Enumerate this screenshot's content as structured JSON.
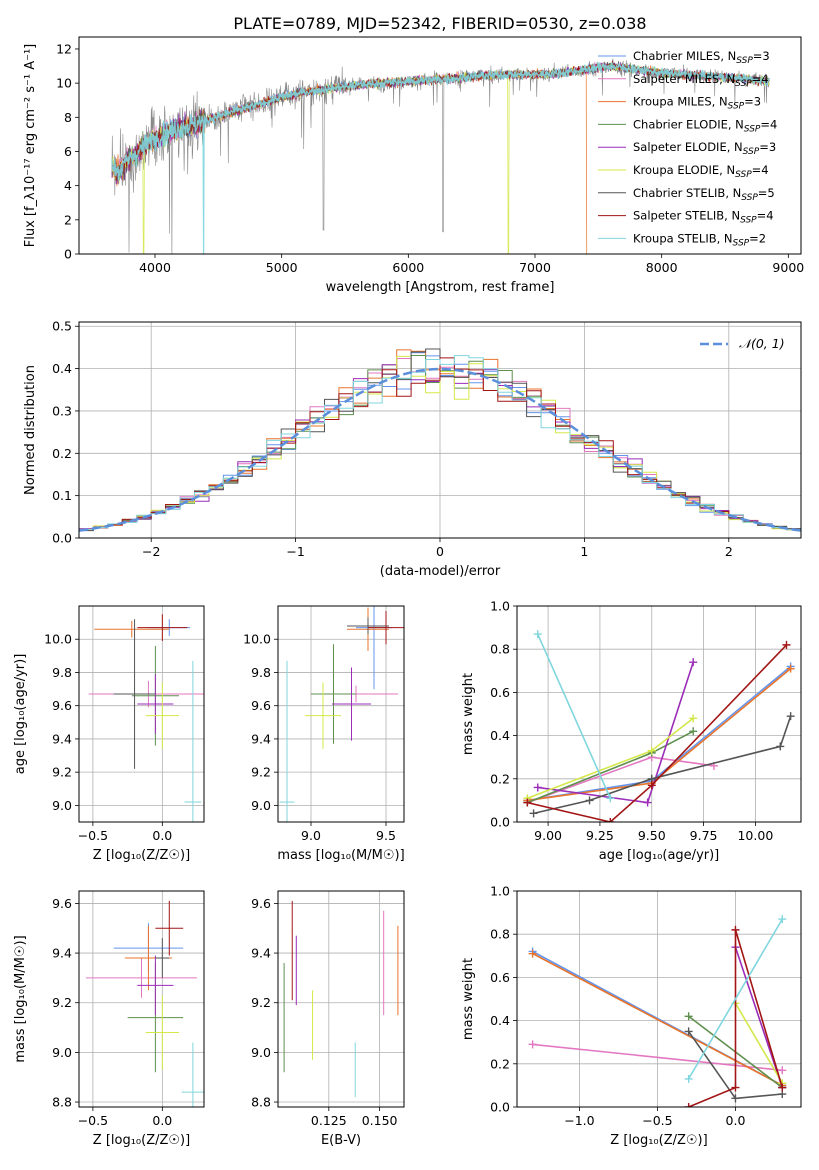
{
  "figure": {
    "title": "PLATE=0789, MJD=52342, FIBERID=0530, z=0.038"
  },
  "colors": {
    "chabrier_miles": "#6495ED",
    "salpeter_miles": "#E377C2",
    "kroupa_miles": "#E8742C",
    "chabrier_elodie": "#5E8F4E",
    "salpeter_elodie": "#9B2DB8",
    "kroupa_elodie": "#D4E84A",
    "chabrier_stelib": "#555555",
    "salpeter_stelib": "#A31515",
    "kroupa_stelib": "#80D6DE",
    "data_gray": "#888888",
    "normal_curve": "#5B8FDB"
  },
  "chart_data": [
    {
      "id": "spectrum",
      "type": "line",
      "xlabel": "wavelength [Angstrom, rest frame]",
      "ylabel": "Flux [f_λ10⁻¹⁷ erg cm⁻² s⁻¹ A⁻¹]",
      "xlim": [
        3400,
        9100
      ],
      "ylim": [
        0,
        12.7
      ],
      "xticks": [
        4000,
        5000,
        6000,
        7000,
        8000,
        9000
      ],
      "yticks": [
        0,
        2,
        4,
        6,
        8,
        10,
        12
      ],
      "grid": false,
      "legend_position": "right",
      "legend": [
        {
          "main": "Chabrier MILES, N",
          "sub": "SSP",
          "suffix": "=3",
          "color": "#6495ED"
        },
        {
          "main": "Salpeter MILES, N",
          "sub": "SSP",
          "suffix": "=4",
          "color": "#E377C2"
        },
        {
          "main": "Kroupa MILES, N",
          "sub": "SSP",
          "suffix": "=3",
          "color": "#E8742C"
        },
        {
          "main": "Chabrier ELODIE, N",
          "sub": "SSP",
          "suffix": "=4",
          "color": "#5E8F4E"
        },
        {
          "main": "Salpeter ELODIE, N",
          "sub": "SSP",
          "suffix": "=3",
          "color": "#9B2DB8"
        },
        {
          "main": "Kroupa ELODIE, N",
          "sub": "SSP",
          "suffix": "=4",
          "color": "#D4E84A"
        },
        {
          "main": "Chabrier STELIB, N",
          "sub": "SSP",
          "suffix": "=5",
          "color": "#555555"
        },
        {
          "main": "Salpeter STELIB, N",
          "sub": "SSP",
          "suffix": "=4",
          "color": "#A31515"
        },
        {
          "main": "Kroupa STELIB, N",
          "sub": "SSP",
          "suffix": "=2",
          "color": "#80D6DE"
        }
      ],
      "continuum": {
        "x": [
          3650,
          3700,
          3800,
          3900,
          4000,
          4200,
          4400,
          4600,
          4800,
          5000,
          5200,
          5400,
          5600,
          5800,
          6000,
          6200,
          6400,
          6600,
          6800,
          7000,
          7200,
          7400,
          7600,
          7800,
          8000,
          8200,
          8400,
          8600,
          8850
        ],
        "y": [
          5.3,
          4.7,
          5.6,
          6.2,
          6.8,
          7.4,
          7.8,
          8.3,
          8.7,
          9.2,
          9.5,
          9.7,
          9.9,
          10.0,
          10.1,
          10.2,
          10.3,
          10.45,
          10.5,
          10.5,
          10.6,
          10.8,
          11.0,
          10.8,
          10.6,
          10.5,
          10.4,
          10.3,
          10.1
        ]
      },
      "gaps": [
        {
          "x": 3910,
          "model": "Kroupa ELODIE",
          "bottom": 0
        },
        {
          "x": 4385,
          "model": "Kroupa STELIB",
          "bottom": 0
        },
        {
          "x": 6790,
          "model": "Kroupa ELODIE",
          "bottom": 0
        },
        {
          "x": 7410,
          "model": "Kroupa MILES",
          "bottom": 0
        }
      ]
    },
    {
      "id": "residuals",
      "type": "line",
      "xlabel": "(data-model)/error",
      "ylabel": "Normed distribution",
      "xlim": [
        -2.5,
        2.5
      ],
      "ylim": [
        0,
        0.51
      ],
      "xticks": [
        -2,
        -1,
        0,
        1,
        2
      ],
      "yticks": [
        0.0,
        0.1,
        0.2,
        0.3,
        0.4,
        0.5
      ],
      "grid": true,
      "legend_position": "top-right",
      "legend_label": "𝒩(0, 1)",
      "bin_width": 0.1,
      "series": [
        "Chabrier MILES",
        "Salpeter MILES",
        "Kroupa MILES",
        "Chabrier ELODIE",
        "Salpeter ELODIE",
        "Kroupa ELODIE",
        "Chabrier STELIB",
        "Salpeter STELIB",
        "Kroupa STELIB"
      ]
    },
    {
      "id": "age_vs_Z",
      "type": "scatter",
      "xlabel": "Z [log₁₀(Z/Z☉)]",
      "ylabel": "age  [log₁₀(age/yr)]",
      "xlim": [
        -0.6,
        0.3
      ],
      "ylim": [
        8.9,
        10.2
      ],
      "xticks": [
        -0.5,
        0.0
      ],
      "yticks": [
        9.0,
        9.2,
        9.4,
        9.6,
        9.8,
        10.0
      ],
      "grid": true,
      "points": [
        {
          "model": "Chabrier MILES",
          "x": 0.05,
          "y": 10.07,
          "xerr": 0.15,
          "yerr": 0.05
        },
        {
          "model": "Salpeter MILES",
          "x": -0.1,
          "y": 9.67,
          "xerr": 0.43,
          "yerr": 0.08
        },
        {
          "model": "Kroupa MILES",
          "x": -0.22,
          "y": 10.06,
          "xerr": 0.27,
          "yerr": 0.05
        },
        {
          "model": "Chabrier ELODIE",
          "x": -0.05,
          "y": 9.66,
          "xerr": 0.17,
          "yerr": 0.3
        },
        {
          "model": "Salpeter ELODIE",
          "x": -0.05,
          "y": 9.61,
          "xerr": 0.13,
          "yerr": 0.18
        },
        {
          "model": "Kroupa ELODIE",
          "x": 0.0,
          "y": 9.54,
          "xerr": 0.12,
          "yerr": 0.2
        },
        {
          "model": "Chabrier STELIB",
          "x": -0.2,
          "y": 9.67,
          "xerr": 0.15,
          "yerr": 0.45
        },
        {
          "model": "Salpeter STELIB",
          "x": 0.0,
          "y": 10.07,
          "xerr": 0.18,
          "yerr": 0.08
        },
        {
          "model": "Kroupa STELIB",
          "x": 0.22,
          "y": 9.02,
          "xerr": 0.06,
          "yerr": 0.85
        }
      ]
    },
    {
      "id": "age_vs_mass",
      "type": "scatter",
      "xlabel": "mass [log₁₀(M/M☉)]",
      "ylabel": "",
      "xlim": [
        8.78,
        9.62
      ],
      "ylim": [
        8.9,
        10.2
      ],
      "xticks": [
        9.0,
        9.5
      ],
      "yticks": [
        9.0,
        9.2,
        9.4,
        9.6,
        9.8,
        10.0
      ],
      "grid": true,
      "points": [
        {
          "model": "Chabrier MILES",
          "x": 9.42,
          "y": 10.07,
          "xerr": 0.12,
          "yerr": 0.37
        },
        {
          "model": "Salpeter MILES",
          "x": 9.3,
          "y": 9.67,
          "xerr": 0.28,
          "yerr": 0.05
        },
        {
          "model": "Kroupa MILES",
          "x": 9.38,
          "y": 10.06,
          "xerr": 0.14,
          "yerr": 0.13
        },
        {
          "model": "Chabrier ELODIE",
          "x": 9.15,
          "y": 9.67,
          "xerr": 0.15,
          "yerr": 0.3
        },
        {
          "model": "Salpeter ELODIE",
          "x": 9.27,
          "y": 9.61,
          "xerr": 0.13,
          "yerr": 0.22
        },
        {
          "model": "Kroupa ELODIE",
          "x": 9.08,
          "y": 9.54,
          "xerr": 0.12,
          "yerr": 0.2
        },
        {
          "model": "Chabrier STELIB",
          "x": 9.38,
          "y": 10.08,
          "xerr": 0.14,
          "yerr": 0.05
        },
        {
          "model": "Salpeter STELIB",
          "x": 9.5,
          "y": 10.07,
          "xerr": 0.12,
          "yerr": 0.1
        },
        {
          "model": "Kroupa STELIB",
          "x": 8.84,
          "y": 9.02,
          "xerr": 0.05,
          "yerr": 0.85
        }
      ]
    },
    {
      "id": "weight_vs_age",
      "type": "line",
      "xlabel": "age  [log₁₀(age/yr)]",
      "ylabel": "mass weight",
      "xlim": [
        8.85,
        10.22
      ],
      "ylim": [
        0,
        1.0
      ],
      "xticks": [
        9.0,
        9.25,
        9.5,
        9.75,
        10.0
      ],
      "yticks": [
        0.0,
        0.2,
        0.4,
        0.6,
        0.8,
        1.0
      ],
      "grid": true,
      "series": [
        {
          "name": "Chabrier MILES",
          "x": [
            8.9,
            9.5,
            10.17
          ],
          "y": [
            0.1,
            0.19,
            0.72
          ]
        },
        {
          "name": "Salpeter MILES",
          "x": [
            8.9,
            9.5,
            9.8
          ],
          "y": [
            0.09,
            0.3,
            0.26
          ]
        },
        {
          "name": "Kroupa MILES",
          "x": [
            8.9,
            9.5,
            10.17
          ],
          "y": [
            0.1,
            0.18,
            0.71
          ]
        },
        {
          "name": "Chabrier ELODIE",
          "x": [
            8.9,
            9.5,
            9.7
          ],
          "y": [
            0.09,
            0.32,
            0.42
          ]
        },
        {
          "name": "Salpeter ELODIE",
          "x": [
            8.95,
            9.48,
            9.7
          ],
          "y": [
            0.16,
            0.09,
            0.74
          ]
        },
        {
          "name": "Kroupa ELODIE",
          "x": [
            8.9,
            9.5,
            9.7
          ],
          "y": [
            0.11,
            0.33,
            0.48
          ]
        },
        {
          "name": "Chabrier STELIB",
          "x": [
            8.93,
            9.2,
            9.5,
            10.12,
            10.17
          ],
          "y": [
            0.04,
            0.1,
            0.2,
            0.35,
            0.49
          ]
        },
        {
          "name": "Salpeter STELIB",
          "x": [
            8.9,
            9.3,
            9.5,
            10.15
          ],
          "y": [
            0.09,
            0.0,
            0.17,
            0.82
          ]
        },
        {
          "name": "Kroupa STELIB",
          "x": [
            8.95,
            9.3
          ],
          "y": [
            0.87,
            0.11
          ]
        }
      ]
    },
    {
      "id": "mass_vs_Z",
      "type": "scatter",
      "xlabel": "Z [log₁₀(Z/Z☉)]",
      "ylabel": "mass [log₁₀(M/M☉)]",
      "xlim": [
        -0.6,
        0.3
      ],
      "ylim": [
        8.78,
        9.65
      ],
      "xticks": [
        -0.5,
        0.0
      ],
      "yticks": [
        8.8,
        9.0,
        9.2,
        9.4,
        9.6
      ],
      "grid": true,
      "points": [
        {
          "model": "Chabrier MILES",
          "x": -0.1,
          "y": 9.42,
          "xerr": 0.25,
          "yerr": 0.1
        },
        {
          "model": "Salpeter MILES",
          "x": -0.15,
          "y": 9.3,
          "xerr": 0.4,
          "yerr": 0.08
        },
        {
          "model": "Kroupa MILES",
          "x": -0.1,
          "y": 9.38,
          "xerr": 0.17,
          "yerr": 0.13
        },
        {
          "model": "Chabrier ELODIE",
          "x": -0.05,
          "y": 9.14,
          "xerr": 0.2,
          "yerr": 0.22
        },
        {
          "model": "Salpeter ELODIE",
          "x": -0.05,
          "y": 9.27,
          "xerr": 0.13,
          "yerr": 0.12
        },
        {
          "model": "Kroupa ELODIE",
          "x": 0.0,
          "y": 9.08,
          "xerr": 0.12,
          "yerr": 0.15
        },
        {
          "model": "Chabrier STELIB",
          "x": 0.0,
          "y": 9.38,
          "xerr": 0.05,
          "yerr": 0.08
        },
        {
          "model": "Salpeter STELIB",
          "x": 0.05,
          "y": 9.5,
          "xerr": 0.1,
          "yerr": 0.11
        },
        {
          "model": "Kroupa STELIB",
          "x": 0.22,
          "y": 8.84,
          "xerr": 0.08,
          "yerr": 0.2
        }
      ]
    },
    {
      "id": "mass_vs_ebv",
      "type": "scatter",
      "xlabel": "E(B-V)",
      "ylabel": "",
      "xlim": [
        0.1,
        0.162
      ],
      "ylim": [
        8.78,
        9.65
      ],
      "xticks": [
        0.125,
        0.15
      ],
      "yticks": [
        8.8,
        9.0,
        9.2,
        9.4,
        9.6
      ],
      "grid": true,
      "points": [
        {
          "model": "Chabrier ELODIE",
          "x": 0.103,
          "y": 9.14,
          "xerr": 0,
          "yerr": 0.22
        },
        {
          "model": "Salpeter STELIB",
          "x": 0.107,
          "y": 9.41,
          "xerr": 0,
          "yerr": 0.2
        },
        {
          "model": "Salpeter ELODIE",
          "x": 0.109,
          "y": 9.33,
          "xerr": 0,
          "yerr": 0.14
        },
        {
          "model": "Kroupa ELODIE",
          "x": 0.117,
          "y": 9.11,
          "xerr": 0,
          "yerr": 0.14
        },
        {
          "model": "Kroupa STELIB",
          "x": 0.138,
          "y": 8.93,
          "xerr": 0,
          "yerr": 0.11
        },
        {
          "model": "Salpeter MILES",
          "x": 0.152,
          "y": 9.36,
          "xerr": 0,
          "yerr": 0.21
        },
        {
          "model": "Kroupa MILES",
          "x": 0.159,
          "y": 9.33,
          "xerr": 0,
          "yerr": 0.18
        }
      ]
    },
    {
      "id": "weight_vs_Z",
      "type": "line",
      "xlabel": "Z [log₁₀(Z/Z☉)]",
      "ylabel": "mass weight",
      "xlim": [
        -1.4,
        0.42
      ],
      "ylim": [
        0,
        1.0
      ],
      "xticks": [
        -1.0,
        -0.5,
        0.0
      ],
      "yticks": [
        0.0,
        0.2,
        0.4,
        0.6,
        0.8,
        1.0
      ],
      "grid": true,
      "series": [
        {
          "name": "Chabrier MILES",
          "x": [
            -1.3,
            0.3
          ],
          "y": [
            0.72,
            0.1
          ]
        },
        {
          "name": "Salpeter MILES",
          "x": [
            -1.3,
            0.3
          ],
          "y": [
            0.29,
            0.17
          ]
        },
        {
          "name": "Kroupa MILES",
          "x": [
            -1.3,
            0.3
          ],
          "y": [
            0.71,
            0.1
          ]
        },
        {
          "name": "Chabrier ELODIE",
          "x": [
            -0.3,
            0.3
          ],
          "y": [
            0.42,
            0.09
          ]
        },
        {
          "name": "Salpeter ELODIE",
          "x": [
            0.0,
            0.3
          ],
          "y": [
            0.74,
            0.09
          ]
        },
        {
          "name": "Kroupa ELODIE",
          "x": [
            0.0,
            0.3
          ],
          "y": [
            0.48,
            0.11
          ]
        },
        {
          "name": "Chabrier STELIB",
          "x": [
            -0.3,
            0.0,
            0.3
          ],
          "y": [
            0.35,
            0.04,
            0.06
          ]
        },
        {
          "name": "Salpeter STELIB",
          "x": [
            -0.3,
            0.0,
            0.0,
            0.3
          ],
          "y": [
            0.0,
            0.09,
            0.82,
            0.09
          ]
        },
        {
          "name": "Kroupa STELIB",
          "x": [
            -0.3,
            0.3
          ],
          "y": [
            0.13,
            0.87
          ]
        }
      ]
    }
  ]
}
